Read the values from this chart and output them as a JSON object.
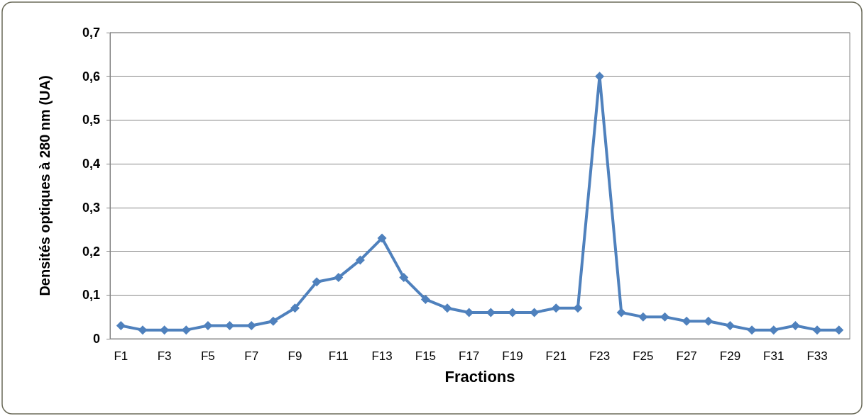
{
  "chart_data": {
    "type": "line",
    "xlabel": "Fractions",
    "ylabel": "Densités optiques à 280 nm (UA)",
    "categories": [
      "F1",
      null,
      "F3",
      null,
      "F5",
      null,
      "F7",
      null,
      "F9",
      null,
      "F11",
      null,
      "F13",
      null,
      "F15",
      null,
      "F17",
      null,
      "F19",
      null,
      "F21",
      null,
      "F23",
      null,
      "F25",
      null,
      "F27",
      null,
      "F29",
      null,
      "F31",
      null,
      "F33",
      null
    ],
    "series": [
      {
        "color": "#4f81bd",
        "values": [
          0.03,
          0.02,
          0.02,
          0.02,
          0.03,
          0.03,
          0.03,
          0.04,
          0.07,
          0.13,
          0.14,
          0.18,
          0.23,
          0.14,
          0.09,
          0.07,
          0.06,
          0.06,
          0.06,
          0.06,
          0.07,
          0.07,
          0.6,
          0.06,
          0.05,
          0.05,
          0.04,
          0.04,
          0.03,
          0.02,
          0.02,
          0.03,
          0.02,
          0.02
        ]
      }
    ],
    "ylim": [
      0,
      0.7
    ],
    "yticks": [
      0,
      {
        "value": 0.1,
        "label": "0,1"
      },
      {
        "value": 0.2,
        "label": "0,2"
      },
      {
        "value": 0.3,
        "label": "0,3"
      },
      {
        "value": 0.4,
        "label": "0,4"
      },
      {
        "value": 0.5,
        "label": "0,5"
      },
      {
        "value": 0.6,
        "label": "0,6"
      },
      {
        "value": 0.7,
        "label": "0,7"
      }
    ],
    "grid": "y",
    "marker": "diamond",
    "line_style": "solid"
  }
}
